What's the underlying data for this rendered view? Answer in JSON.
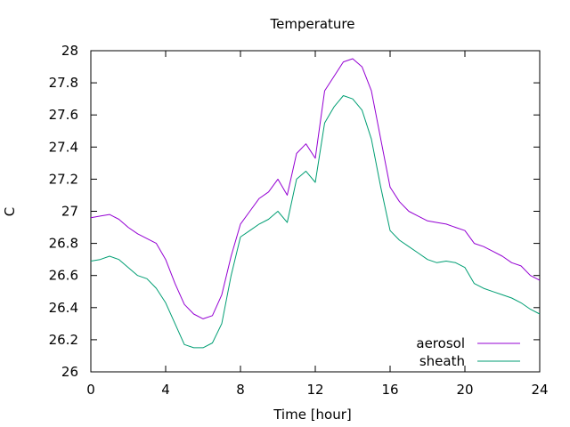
{
  "chart_data": {
    "type": "line",
    "title": "Temperature",
    "xlabel": "Time [hour]",
    "ylabel": "C",
    "xlim": [
      0,
      24
    ],
    "ylim": [
      26,
      28
    ],
    "xticks": [
      "0",
      "4",
      "8",
      "12",
      "16",
      "20",
      "24"
    ],
    "yticks": [
      "26",
      "26.2",
      "26.4",
      "26.6",
      "26.8",
      "27",
      "27.2",
      "27.4",
      "27.6",
      "27.8",
      "28"
    ],
    "grid": false,
    "legend_position": "bottom-right",
    "series": [
      {
        "name": "aerosol",
        "color": "#9400d3",
        "x": [
          0,
          0.5,
          1,
          1.5,
          2,
          2.5,
          3,
          3.5,
          4,
          4.5,
          5,
          5.5,
          6,
          6.5,
          7,
          7.5,
          8,
          8.5,
          9,
          9.5,
          10,
          10.5,
          11,
          11.5,
          12,
          12.5,
          13,
          13.5,
          14,
          14.5,
          15,
          15.5,
          16,
          16.5,
          17,
          17.5,
          18,
          18.5,
          19,
          19.5,
          20,
          20.5,
          21,
          21.5,
          22,
          22.5,
          23,
          23.5,
          24
        ],
        "y": [
          26.96,
          26.97,
          26.98,
          26.95,
          26.9,
          26.86,
          26.83,
          26.8,
          26.7,
          26.55,
          26.42,
          26.36,
          26.33,
          26.35,
          26.48,
          26.72,
          26.92,
          27.0,
          27.08,
          27.12,
          27.2,
          27.1,
          27.36,
          27.42,
          27.33,
          27.75,
          27.84,
          27.93,
          27.95,
          27.9,
          27.75,
          27.45,
          27.15,
          27.06,
          27.0,
          26.97,
          26.94,
          26.93,
          26.92,
          26.9,
          26.88,
          26.8,
          26.78,
          26.75,
          26.72,
          26.68,
          26.66,
          26.6,
          26.57
        ]
      },
      {
        "name": "sheath",
        "color": "#009e73",
        "x": [
          0,
          0.5,
          1,
          1.5,
          2,
          2.5,
          3,
          3.5,
          4,
          4.5,
          5,
          5.5,
          6,
          6.5,
          7,
          7.5,
          8,
          8.5,
          9,
          9.5,
          10,
          10.5,
          11,
          11.5,
          12,
          12.5,
          13,
          13.5,
          14,
          14.5,
          15,
          15.5,
          16,
          16.5,
          17,
          17.5,
          18,
          18.5,
          19,
          19.5,
          20,
          20.5,
          21,
          21.5,
          22,
          22.5,
          23,
          23.5,
          24
        ],
        "y": [
          26.69,
          26.7,
          26.72,
          26.7,
          26.65,
          26.6,
          26.58,
          26.52,
          26.43,
          26.3,
          26.17,
          26.15,
          26.15,
          26.18,
          26.3,
          26.6,
          26.84,
          26.88,
          26.92,
          26.95,
          27.0,
          26.93,
          27.2,
          27.25,
          27.18,
          27.55,
          27.65,
          27.72,
          27.7,
          27.63,
          27.45,
          27.15,
          26.88,
          26.82,
          26.78,
          26.74,
          26.7,
          26.68,
          26.69,
          26.68,
          26.65,
          26.55,
          26.52,
          26.5,
          26.48,
          26.46,
          26.43,
          26.39,
          26.36
        ]
      }
    ]
  }
}
